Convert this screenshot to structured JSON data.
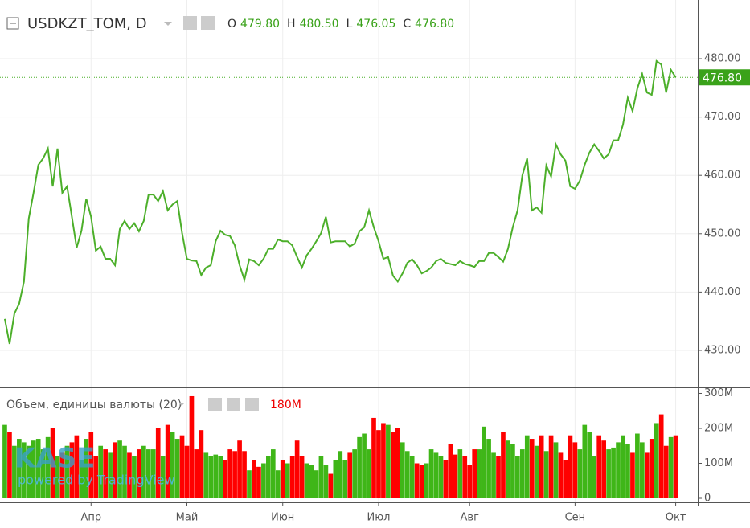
{
  "chart_data": [
    {
      "type": "line",
      "title": "USDKZT_TOM, D",
      "ohlc": [
        {
          "label": "O",
          "value": "479.80"
        },
        {
          "label": "H",
          "value": "480.50"
        },
        {
          "label": "L",
          "value": "476.05"
        },
        {
          "label": "C",
          "value": "476.80"
        }
      ],
      "color": "#4caf2a",
      "xlim": [
        -1,
        144.6
      ],
      "xticks": [
        {
          "value": 18,
          "label": "Апр"
        },
        {
          "value": 38,
          "label": "Май"
        },
        {
          "value": 58,
          "label": "Июн"
        },
        {
          "value": 78,
          "label": "Июл"
        },
        {
          "value": 97,
          "label": "Авг"
        },
        {
          "value": 119,
          "label": "Сен"
        },
        {
          "value": 140,
          "label": "Окт"
        }
      ],
      "ylim": [
        423.66,
        490.06
      ],
      "yticks": [
        {
          "value": 430,
          "label": "430.00"
        },
        {
          "value": 440,
          "label": "440.00"
        },
        {
          "value": 450,
          "label": "450.00"
        },
        {
          "value": 460,
          "label": "460.00"
        },
        {
          "value": 470,
          "label": "470.00"
        },
        {
          "value": 480,
          "label": "480.00"
        }
      ],
      "grid": true,
      "values": [
        435.4,
        431.1,
        436.3,
        438.0,
        441.8,
        452.6,
        457.0,
        461.8,
        462.9,
        464.6,
        458.1,
        464.6,
        457.0,
        458.1,
        452.9,
        447.6,
        450.5,
        456.0,
        452.9,
        447.1,
        447.8,
        445.7,
        445.7,
        444.6,
        450.8,
        452.2,
        450.8,
        451.8,
        450.4,
        452.2,
        456.7,
        456.7,
        455.6,
        457.3,
        454.0,
        455.0,
        455.6,
        450.1,
        445.7,
        445.4,
        445.3,
        442.9,
        444.2,
        444.6,
        448.7,
        450.5,
        449.8,
        449.6,
        448.0,
        444.6,
        442.1,
        445.6,
        445.3,
        444.6,
        445.7,
        447.4,
        447.4,
        449.0,
        448.7,
        448.7,
        448.0,
        446.0,
        444.2,
        446.3,
        447.4,
        448.7,
        450.1,
        452.9,
        448.5,
        448.7,
        448.7,
        448.7,
        447.8,
        448.3,
        450.4,
        451.1,
        454.0,
        451.1,
        448.7,
        445.7,
        446.0,
        442.8,
        441.8,
        443.2,
        445.0,
        445.6,
        444.6,
        443.2,
        443.6,
        444.2,
        445.3,
        445.7,
        445.0,
        444.8,
        444.6,
        445.3,
        444.8,
        444.6,
        444.3,
        445.3,
        445.3,
        446.7,
        446.7,
        446.0,
        445.2,
        447.4,
        451.1,
        454.0,
        460.0,
        462.9,
        454.0,
        454.5,
        453.6,
        461.7,
        459.8,
        465.3,
        463.6,
        462.5,
        458.1,
        457.7,
        459.1,
        461.8,
        463.9,
        465.3,
        464.2,
        462.9,
        463.6,
        466.0,
        466.0,
        468.7,
        473.3,
        471.0,
        474.9,
        477.4,
        474.2,
        473.8,
        479.6,
        479.0,
        474.2,
        478.1,
        476.8
      ]
    },
    {
      "type": "bar",
      "title": "Объем, единицы валюты (20)",
      "legend_value": "180M",
      "up_color": "#3fb618",
      "down_color": "#ff0000",
      "ylim": [
        -11.5,
        317.2
      ],
      "yticks": [
        0,
        {
          "value": 100,
          "label": "100M"
        },
        {
          "value": 200,
          "label": "200M"
        },
        {
          "value": 300,
          "label": "300M"
        }
      ],
      "values": [
        210,
        190,
        150,
        170,
        160,
        150,
        165,
        170,
        140,
        175,
        200,
        120,
        130,
        150,
        160,
        180,
        110,
        170,
        190,
        120,
        150,
        140,
        130,
        160,
        165,
        150,
        130,
        120,
        140,
        150,
        140,
        140,
        200,
        120,
        210,
        190,
        170,
        180,
        150,
        292,
        140,
        195,
        130,
        120,
        125,
        120,
        110,
        140,
        135,
        165,
        135,
        80,
        110,
        90,
        100,
        120,
        140,
        80,
        110,
        100,
        120,
        165,
        120,
        100,
        95,
        80,
        120,
        95,
        70,
        110,
        135,
        110,
        130,
        140,
        175,
        185,
        140,
        230,
        195,
        215,
        210,
        190,
        200,
        160,
        135,
        120,
        100,
        95,
        100,
        140,
        130,
        120,
        110,
        155,
        125,
        140,
        120,
        95,
        140,
        140,
        205,
        170,
        130,
        120,
        190,
        165,
        155,
        120,
        140,
        180,
        170,
        150,
        180,
        135,
        180,
        160,
        130,
        110,
        180,
        160,
        140,
        210,
        190,
        120,
        180,
        165,
        140,
        145,
        160,
        180,
        155,
        130,
        185,
        160,
        130,
        170,
        215,
        240,
        150,
        175,
        180
      ]
    },
    {
      "watermark_logo": "KASE",
      "watermark_text": "powered by TradingView"
    }
  ]
}
